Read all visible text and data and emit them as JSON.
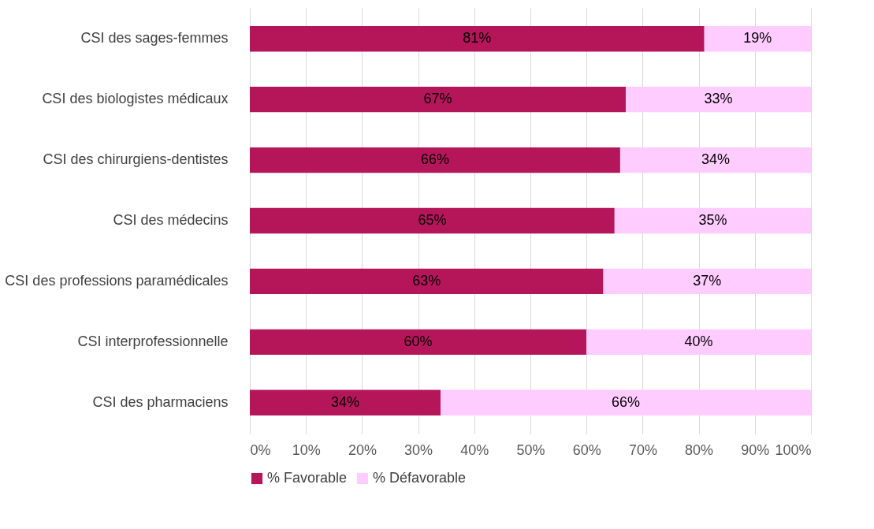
{
  "chart_data": {
    "type": "bar",
    "orientation": "horizontal",
    "stacked": true,
    "categories": [
      "CSI des sages-femmes",
      "CSI des biologistes médicaux",
      "CSI des chirurgiens-dentistes",
      "CSI des médecins",
      "CSI des professions paramédicales",
      "CSI interprofessionnelle",
      "CSI des pharmaciens"
    ],
    "series": [
      {
        "name": "% Favorable",
        "color": "#b5165a",
        "values": [
          81,
          67,
          66,
          65,
          63,
          60,
          34
        ],
        "value_labels": [
          "81%",
          "67%",
          "66%",
          "65%",
          "63%",
          "60%",
          "34%"
        ]
      },
      {
        "name": "% Défavorable",
        "color": "#ffccff",
        "values": [
          19,
          33,
          34,
          35,
          37,
          40,
          66
        ],
        "value_labels": [
          "19%",
          "33%",
          "34%",
          "35%",
          "37%",
          "40%",
          "66%"
        ]
      }
    ],
    "xlim": [
      0,
      100
    ],
    "xticks": [
      {
        "value": 0,
        "label": "0%"
      },
      {
        "value": 10,
        "label": "10%"
      },
      {
        "value": 20,
        "label": "20%"
      },
      {
        "value": 30,
        "label": "30%"
      },
      {
        "value": 40,
        "label": "40%"
      },
      {
        "value": 50,
        "label": "50%"
      },
      {
        "value": 60,
        "label": "60%"
      },
      {
        "value": 70,
        "label": "70%"
      },
      {
        "value": 80,
        "label": "80%"
      },
      {
        "value": 90,
        "label": "90%"
      },
      {
        "value": 100,
        "label": "100%"
      }
    ],
    "grid": "x",
    "legend": "bottom"
  }
}
